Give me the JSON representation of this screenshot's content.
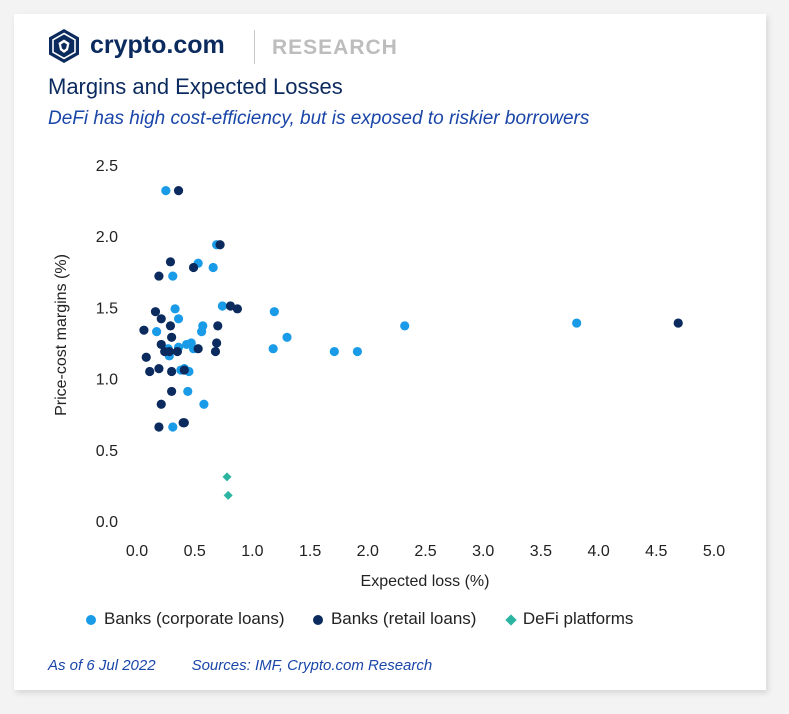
{
  "brand": {
    "name": "crypto.com",
    "section": "RESEARCH",
    "logo_icon": "crypto-com-lion-shield-icon"
  },
  "header": {
    "title": "Margins and Expected Losses",
    "subtitle": "DeFi has high cost-efficiency, but is exposed to riskier borrowers"
  },
  "footer": {
    "as_of": "As of 6 Jul 2022",
    "sources": "Sources: IMF, Crypto.com Research"
  },
  "colors": {
    "corporate": "#1a9be8",
    "retail": "#0b2a5e",
    "defi": "#2bb5a0",
    "brand": "#0b2a5e"
  },
  "chart_data": {
    "type": "scatter",
    "xlabel": "Expected loss (%)",
    "ylabel": "Price-cost margins (%)",
    "xlim": [
      0,
      5
    ],
    "ylim": [
      0,
      2.5
    ],
    "x_ticks": [
      "0.0",
      "0.5",
      "1.0",
      "1.5",
      "2.0",
      "2.5",
      "3.0",
      "3.5",
      "4.0",
      "4.5",
      "5.0"
    ],
    "y_ticks": [
      "0.0",
      "0.5",
      "1.0",
      "1.5",
      "2.0",
      "2.5"
    ],
    "grid": false,
    "legend_position": "bottom",
    "series": [
      {
        "name": "Banks (corporate loans)",
        "marker": "circle",
        "color": "#1a9be8",
        "points": [
          [
            0.25,
            2.32
          ],
          [
            0.69,
            1.94
          ],
          [
            0.53,
            1.81
          ],
          [
            0.66,
            1.78
          ],
          [
            0.31,
            1.72
          ],
          [
            0.74,
            1.51
          ],
          [
            1.19,
            1.47
          ],
          [
            0.33,
            1.49
          ],
          [
            0.36,
            1.42
          ],
          [
            0.57,
            1.37
          ],
          [
            0.56,
            1.33
          ],
          [
            0.17,
            1.33
          ],
          [
            2.32,
            1.37
          ],
          [
            3.81,
            1.39
          ],
          [
            1.3,
            1.29
          ],
          [
            1.18,
            1.21
          ],
          [
            1.71,
            1.19
          ],
          [
            1.91,
            1.19
          ],
          [
            0.27,
            1.21
          ],
          [
            0.28,
            1.16
          ],
          [
            0.36,
            1.22
          ],
          [
            0.43,
            1.24
          ],
          [
            0.47,
            1.25
          ],
          [
            0.49,
            1.21
          ],
          [
            0.41,
            1.07
          ],
          [
            0.45,
            1.05
          ],
          [
            0.38,
            1.06
          ],
          [
            0.44,
            0.91
          ],
          [
            0.58,
            0.82
          ],
          [
            0.31,
            0.66
          ]
        ]
      },
      {
        "name": "Banks (retail loans)",
        "marker": "circle",
        "color": "#0b2a5e",
        "points": [
          [
            0.36,
            2.32
          ],
          [
            0.72,
            1.94
          ],
          [
            0.29,
            1.82
          ],
          [
            0.49,
            1.78
          ],
          [
            0.19,
            1.72
          ],
          [
            0.81,
            1.51
          ],
          [
            0.87,
            1.49
          ],
          [
            0.16,
            1.47
          ],
          [
            0.21,
            1.42
          ],
          [
            0.29,
            1.37
          ],
          [
            0.7,
            1.37
          ],
          [
            0.06,
            1.34
          ],
          [
            0.3,
            1.29
          ],
          [
            0.69,
            1.25
          ],
          [
            0.21,
            1.24
          ],
          [
            0.53,
            1.21
          ],
          [
            0.68,
            1.19
          ],
          [
            0.24,
            1.19
          ],
          [
            0.28,
            1.19
          ],
          [
            0.35,
            1.19
          ],
          [
            0.08,
            1.15
          ],
          [
            0.19,
            1.07
          ],
          [
            0.3,
            1.05
          ],
          [
            0.11,
            1.05
          ],
          [
            0.41,
            1.06
          ],
          [
            0.3,
            0.91
          ],
          [
            0.21,
            0.82
          ],
          [
            0.41,
            0.69
          ],
          [
            0.4,
            0.69
          ],
          [
            0.19,
            0.66
          ],
          [
            4.69,
            1.39
          ]
        ]
      },
      {
        "name": "DeFi platforms",
        "marker": "diamond",
        "color": "#2bb5a0",
        "points": [
          [
            0.78,
            0.31
          ],
          [
            0.79,
            0.18
          ]
        ]
      }
    ]
  }
}
